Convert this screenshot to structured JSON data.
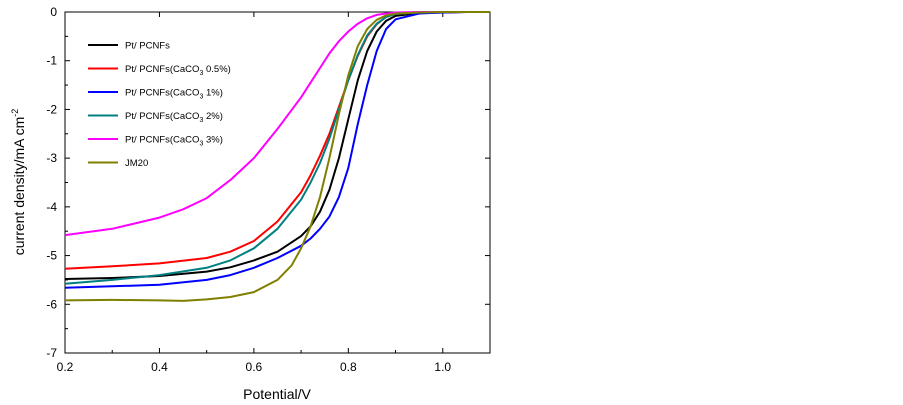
{
  "chart_data": {
    "type": "line",
    "title": "",
    "xlabel": "Potential/V",
    "ylabel": "current density/mA cm",
    "ylabel_sup": "-2",
    "xlim": [
      0.2,
      1.1
    ],
    "ylim": [
      -7,
      0
    ],
    "xticks": [
      0.2,
      0.4,
      0.6,
      0.8,
      1.0
    ],
    "yticks": [
      0,
      -1,
      -2,
      -3,
      -4,
      -5,
      -6,
      -7
    ],
    "xtick_labels": [
      "0.2",
      "0.4",
      "0.6",
      "0.8",
      "1.0"
    ],
    "ytick_labels": [
      "0",
      "-1",
      "-2",
      "-3",
      "-4",
      "-5",
      "-6",
      "-7"
    ],
    "grid": false,
    "legend_position": "top-left",
    "series": [
      {
        "name": "Pt/ PCNFs",
        "legend": {
          "main": "Pt/ PCNFs",
          "sub": "",
          "after": ""
        },
        "color": "#000000",
        "x": [
          0.2,
          0.3,
          0.4,
          0.5,
          0.55,
          0.6,
          0.65,
          0.7,
          0.72,
          0.74,
          0.76,
          0.78,
          0.8,
          0.82,
          0.84,
          0.86,
          0.88,
          0.9,
          0.95,
          1.0,
          1.05,
          1.1
        ],
        "y": [
          -5.48,
          -5.46,
          -5.42,
          -5.33,
          -5.24,
          -5.1,
          -4.92,
          -4.6,
          -4.4,
          -4.1,
          -3.65,
          -3.0,
          -2.2,
          -1.4,
          -0.8,
          -0.4,
          -0.18,
          -0.08,
          -0.02,
          -0.01,
          0,
          0
        ]
      },
      {
        "name": "Pt/ PCNFs(CaCO3 0.5%)",
        "legend": {
          "main": "Pt/ PCNFs(CaCO",
          "sub": "3",
          "after": " 0.5%)"
        },
        "color": "#ff0000",
        "x": [
          0.2,
          0.3,
          0.4,
          0.5,
          0.55,
          0.6,
          0.65,
          0.7,
          0.72,
          0.74,
          0.76,
          0.78,
          0.8,
          0.82,
          0.84,
          0.86,
          0.88,
          0.9,
          0.95,
          1.0,
          1.05,
          1.1
        ],
        "y": [
          -5.27,
          -5.22,
          -5.16,
          -5.05,
          -4.92,
          -4.7,
          -4.3,
          -3.7,
          -3.35,
          -2.95,
          -2.5,
          -1.95,
          -1.4,
          -0.9,
          -0.5,
          -0.25,
          -0.1,
          -0.04,
          -0.01,
          0,
          0,
          0
        ]
      },
      {
        "name": "Pt/ PCNFs(CaCO3 1%)",
        "legend": {
          "main": "Pt/ PCNFs(CaCO",
          "sub": "3",
          "after": " 1%)"
        },
        "color": "#0000ff",
        "x": [
          0.2,
          0.3,
          0.4,
          0.5,
          0.55,
          0.6,
          0.65,
          0.7,
          0.72,
          0.74,
          0.76,
          0.78,
          0.8,
          0.82,
          0.84,
          0.86,
          0.88,
          0.9,
          0.95,
          1.0,
          1.05,
          1.1
        ],
        "y": [
          -5.66,
          -5.63,
          -5.6,
          -5.5,
          -5.4,
          -5.25,
          -5.05,
          -4.8,
          -4.65,
          -4.45,
          -4.2,
          -3.8,
          -3.2,
          -2.3,
          -1.5,
          -0.8,
          -0.35,
          -0.15,
          -0.03,
          -0.01,
          0,
          0
        ]
      },
      {
        "name": "Pt/ PCNFs(CaCO3 2%)",
        "legend": {
          "main": "Pt/ PCNFs(CaCO",
          "sub": "3",
          "after": " 2%)"
        },
        "color": "#008080",
        "x": [
          0.2,
          0.3,
          0.4,
          0.5,
          0.55,
          0.6,
          0.65,
          0.7,
          0.72,
          0.74,
          0.76,
          0.78,
          0.8,
          0.82,
          0.84,
          0.86,
          0.88,
          0.9,
          0.95,
          1.0,
          1.05,
          1.1
        ],
        "y": [
          -5.58,
          -5.5,
          -5.4,
          -5.25,
          -5.1,
          -4.85,
          -4.45,
          -3.85,
          -3.5,
          -3.1,
          -2.6,
          -2.0,
          -1.4,
          -0.88,
          -0.48,
          -0.24,
          -0.1,
          -0.04,
          -0.01,
          0,
          0,
          0
        ]
      },
      {
        "name": "Pt/ PCNFs(CaCO3 3%)",
        "legend": {
          "main": "Pt/ PCNFs(CaCO",
          "sub": "3",
          "after": " 3%)"
        },
        "color": "#ff00ff",
        "x": [
          0.2,
          0.3,
          0.4,
          0.45,
          0.5,
          0.55,
          0.6,
          0.65,
          0.7,
          0.72,
          0.74,
          0.76,
          0.78,
          0.8,
          0.82,
          0.84,
          0.86,
          0.88,
          0.9,
          0.95,
          1.0,
          1.1
        ],
        "y": [
          -4.58,
          -4.45,
          -4.22,
          -4.05,
          -3.82,
          -3.45,
          -3.0,
          -2.4,
          -1.75,
          -1.45,
          -1.15,
          -0.85,
          -0.6,
          -0.4,
          -0.24,
          -0.13,
          -0.06,
          -0.03,
          -0.01,
          0,
          0,
          0
        ]
      },
      {
        "name": "JM20",
        "legend": {
          "main": "JM20",
          "sub": "",
          "after": ""
        },
        "color": "#808000",
        "x": [
          0.2,
          0.3,
          0.4,
          0.45,
          0.5,
          0.55,
          0.6,
          0.65,
          0.68,
          0.7,
          0.72,
          0.74,
          0.76,
          0.78,
          0.8,
          0.82,
          0.84,
          0.86,
          0.88,
          0.9,
          0.95,
          1.0,
          1.05,
          1.1
        ],
        "y": [
          -5.92,
          -5.91,
          -5.92,
          -5.93,
          -5.9,
          -5.85,
          -5.75,
          -5.5,
          -5.2,
          -4.85,
          -4.4,
          -3.8,
          -3.0,
          -2.1,
          -1.3,
          -0.7,
          -0.35,
          -0.16,
          -0.07,
          -0.03,
          -0.01,
          0,
          0,
          0
        ]
      }
    ]
  }
}
